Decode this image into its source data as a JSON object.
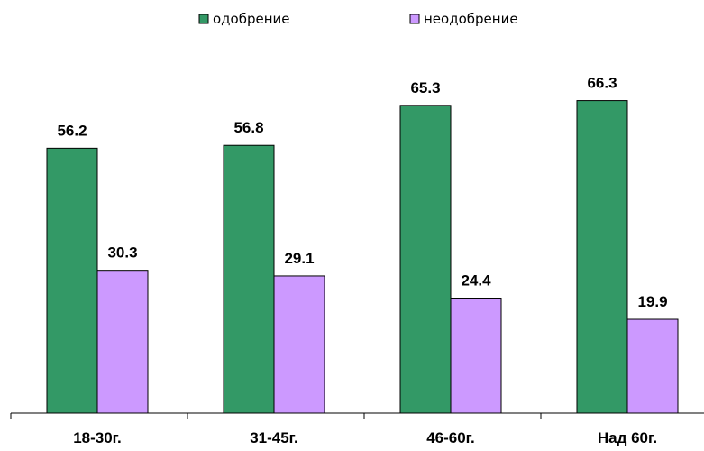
{
  "chart_data": {
    "type": "bar",
    "categories": [
      "18-30г.",
      "31-45г.",
      "46-60г.",
      "Над 60г."
    ],
    "series": [
      {
        "name": "одобрение",
        "values": [
          56.2,
          56.8,
          65.3,
          66.3
        ],
        "value_labels": [
          "56.2",
          "56.8",
          "65.3",
          "66.3"
        ],
        "color": "#339966"
      },
      {
        "name": "неодобрение",
        "values": [
          30.3,
          29.1,
          24.4,
          19.9
        ],
        "value_labels": [
          "30.3",
          "29.1",
          "24.4",
          "19.9"
        ],
        "color": "#cc99ff"
      }
    ],
    "title": "",
    "xlabel": "",
    "ylabel": "",
    "ylim": [
      0,
      80
    ],
    "grid": false,
    "legend_position": "top-center"
  }
}
